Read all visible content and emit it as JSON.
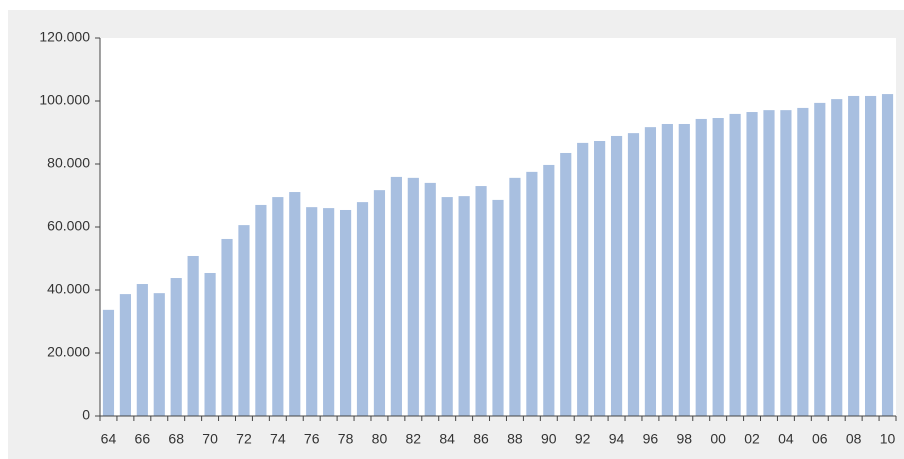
{
  "chart_data": {
    "type": "bar",
    "categories": [
      "64",
      null,
      "66",
      null,
      "68",
      null,
      "70",
      null,
      "72",
      null,
      "74",
      null,
      "76",
      null,
      "78",
      null,
      "80",
      null,
      "82",
      null,
      "84",
      null,
      "86",
      null,
      "88",
      null,
      "90",
      null,
      "92",
      null,
      "94",
      null,
      "96",
      null,
      "98",
      null,
      "00",
      null,
      "02",
      null,
      "04",
      null,
      "06",
      null,
      "08",
      null,
      "10"
    ],
    "values": [
      33700,
      38700,
      41900,
      39000,
      43800,
      50800,
      45400,
      56200,
      60600,
      67000,
      69500,
      71100,
      66300,
      66000,
      65400,
      67900,
      71700,
      75900,
      75600,
      74000,
      69500,
      69800,
      73000,
      68600,
      75600,
      77500,
      79700,
      83500,
      86700,
      87300,
      88900,
      89800,
      91700,
      92700,
      92700,
      94300,
      94600,
      95900,
      96500,
      97100,
      97100,
      97800,
      99400,
      100600,
      101600,
      101600,
      102200
    ],
    "color": "#a8bfe0",
    "ylim": [
      0,
      120000
    ],
    "yticks": [
      0,
      {
        "value": 20000,
        "label": "20.000"
      },
      {
        "value": 40000,
        "label": "40.000"
      },
      {
        "value": 60000,
        "label": "60.000"
      },
      {
        "value": 80000,
        "label": "80.000"
      },
      {
        "value": 100000,
        "label": "100.000"
      },
      {
        "value": 120000,
        "label": "120.000"
      }
    ],
    "grid": false
  }
}
